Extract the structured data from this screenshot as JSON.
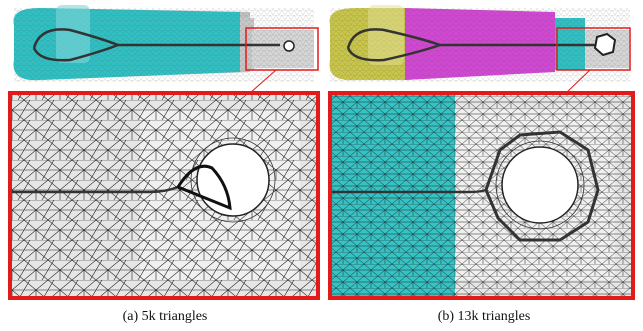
{
  "figure": {
    "panels": [
      {
        "caption": "(a) 5k triangles"
      },
      {
        "caption": "(b) 13k triangles"
      }
    ]
  }
}
